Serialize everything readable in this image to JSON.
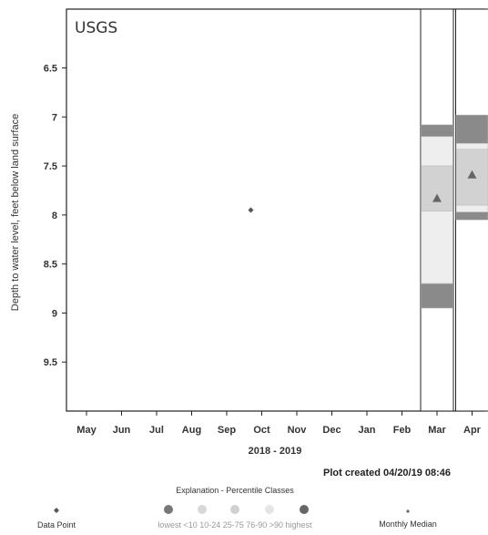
{
  "chart_data": {
    "type": "scatter",
    "watermark": "USGS",
    "ylabel": "Depth to water level, feet below land surface",
    "xlabel": "2018 - 2019",
    "y_inverted": true,
    "ylim": [
      5.9,
      10.0
    ],
    "y_ticks": [
      6.5,
      7,
      7.5,
      8,
      8.5,
      9,
      9.5
    ],
    "y_tick_labels": [
      "6.5",
      "7",
      "7.5",
      "8",
      "8.5",
      "9",
      "9.5"
    ],
    "categories": [
      "May",
      "Jun",
      "Jul",
      "Aug",
      "Sep",
      "Oct",
      "Nov",
      "Dec",
      "Jan",
      "Feb",
      "Mar",
      "Apr"
    ],
    "data_points": [
      {
        "month": "Oct",
        "value": 7.95
      }
    ],
    "monthly_medians": [
      {
        "month": "Mar",
        "value": 7.83
      },
      {
        "month": "Apr",
        "value": 7.59
      }
    ],
    "percentile_boxes": [
      {
        "month": "Mar",
        "bands": [
          7.08,
          7.2,
          7.5,
          7.96,
          8.7,
          8.95
        ]
      },
      {
        "month": "Apr",
        "bands": [
          6.98,
          7.27,
          7.33,
          7.9,
          7.97,
          8.05
        ]
      }
    ],
    "created_text": "Plot created 04/20/19 08:46",
    "legend": {
      "title": "Explanation - Percentile Classes",
      "data_point_label": "Data Point",
      "median_label": "Monthly Median",
      "classes_label": "lowest  <10  10-24  25-75  76-90  >90  highest"
    },
    "colors": {
      "data_point": "#555555",
      "median": "#666666",
      "outer_band": "#8a8a8a",
      "light_band": "#eeeeee",
      "mid_band": "#d2d2d2",
      "axis": "#222222"
    }
  }
}
